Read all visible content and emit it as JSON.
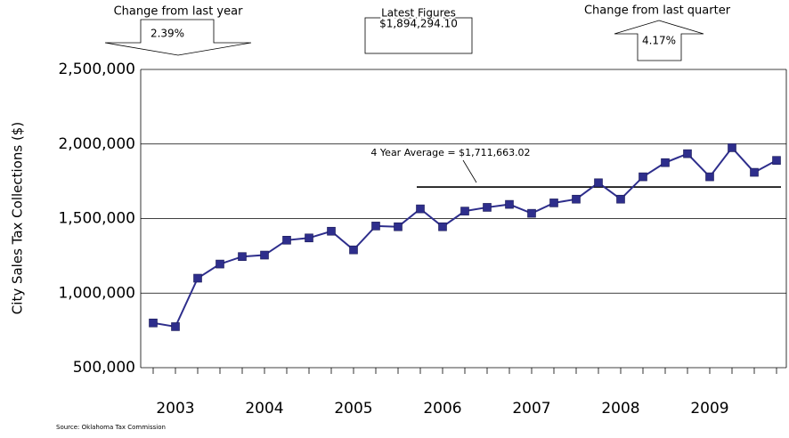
{
  "chart_data": {
    "type": "line",
    "y_label": "City Sales Tax Collections ($)",
    "source": "Source: Oklahoma Tax Commission",
    "categories": [
      null,
      "2003",
      null,
      null,
      null,
      "2004",
      null,
      null,
      null,
      "2005",
      null,
      null,
      null,
      "2006",
      null,
      null,
      null,
      "2007",
      null,
      null,
      null,
      "2008",
      null,
      null,
      null,
      "2009",
      null,
      null,
      null
    ],
    "series": [
      {
        "name": "City Sales Tax Collections",
        "color": "#2e2e8c",
        "values": [
          800000,
          775000,
          1100000,
          1195000,
          1245000,
          1255000,
          1355000,
          1370000,
          1415000,
          1290000,
          1450000,
          1445000,
          1565000,
          1445000,
          1550000,
          1575000,
          1595000,
          1535000,
          1605000,
          1630000,
          1740000,
          1630000,
          1780000,
          1875000,
          1935000,
          1780000,
          1975000,
          1810000,
          1890000
        ]
      }
    ],
    "ylim": [
      500000,
      2500000
    ],
    "yticks": [
      {
        "value": 500000,
        "label": "500,000"
      },
      {
        "value": 1000000,
        "label": "1,000,000"
      },
      {
        "value": 1500000,
        "label": "1,500,000"
      },
      {
        "value": 2000000,
        "label": "2,000,000"
      },
      {
        "value": 2500000,
        "label": "2,500,000"
      }
    ],
    "grid": true,
    "average": {
      "text": "4 Year Average = $1,711,663.02",
      "value": 1711663.02
    },
    "change_year": {
      "title": "Change from last year",
      "text": "2.39%"
    },
    "latest": {
      "title": "Latest Figures",
      "text": "$1,894,294.10"
    },
    "change_quarter": {
      "title": "Change from last quarter",
      "text": "4.17%"
    }
  }
}
